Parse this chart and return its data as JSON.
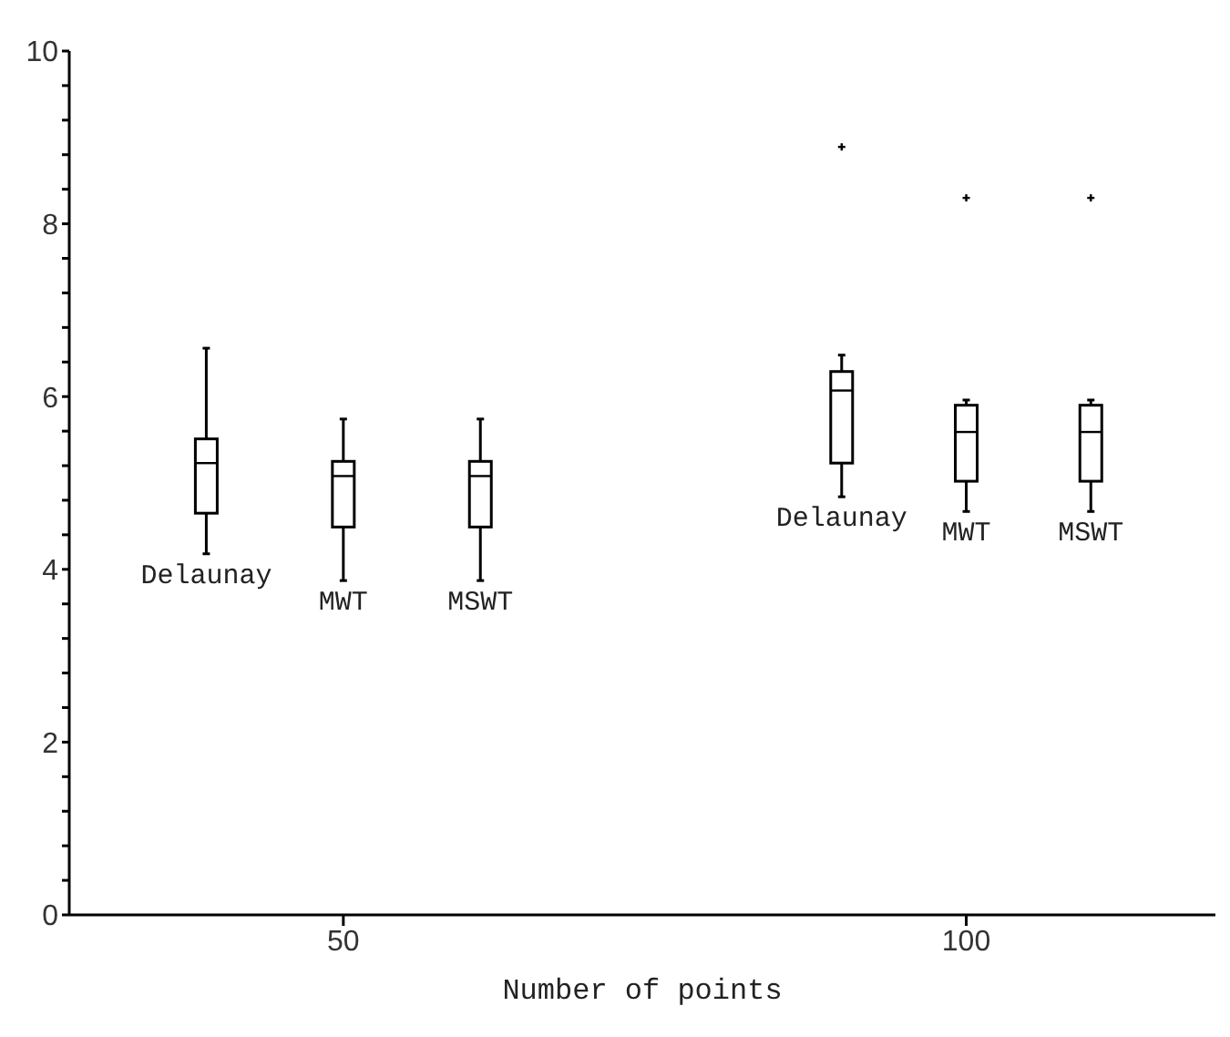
{
  "chart_data": {
    "type": "box",
    "xlabel": "Number of points",
    "xlim": [
      28,
      120
    ],
    "xticks": [
      50,
      100
    ],
    "ylim": [
      0,
      10
    ],
    "yticks": [
      0,
      {
        "value": 0.4,
        "label": null
      },
      {
        "value": 0.8,
        "label": null
      },
      {
        "value": 1.2,
        "label": null
      },
      {
        "value": 1.6,
        "label": null
      },
      2,
      {
        "value": 2.4,
        "label": null
      },
      {
        "value": 2.8,
        "label": null
      },
      {
        "value": 3.2,
        "label": null
      },
      {
        "value": 3.6,
        "label": null
      },
      4,
      {
        "value": 4.4,
        "label": null
      },
      {
        "value": 4.8,
        "label": null
      },
      {
        "value": 5.2,
        "label": null
      },
      {
        "value": 5.6,
        "label": null
      },
      6,
      {
        "value": 6.4,
        "label": null
      },
      {
        "value": 6.8,
        "label": null
      },
      {
        "value": 7.2,
        "label": null
      },
      {
        "value": 7.6,
        "label": null
      },
      8,
      {
        "value": 8.4,
        "label": null
      },
      {
        "value": 8.8,
        "label": null
      },
      {
        "value": 9.2,
        "label": null
      },
      {
        "value": 9.6,
        "label": null
      },
      10
    ],
    "series": [
      {
        "name": "Delaunay",
        "color": "#000000",
        "x": [
          39,
          90
        ],
        "boxes": [
          {
            "low": 4.18,
            "q1": 4.65,
            "median": 5.23,
            "q3": 5.51,
            "high": 6.56
          },
          {
            "low": 4.84,
            "q1": 5.23,
            "median": 6.07,
            "q3": 6.29,
            "high": 6.48,
            "outliers": [
              8.89
            ]
          }
        ]
      },
      {
        "name": "MWT",
        "color": "#000000",
        "x": [
          50,
          100
        ],
        "boxes": [
          {
            "low": 3.87,
            "q1": 4.49,
            "median": 5.08,
            "q3": 5.25,
            "high": 5.74
          },
          {
            "low": 4.67,
            "q1": 5.02,
            "median": 5.59,
            "q3": 5.9,
            "high": 5.96,
            "outliers": [
              8.3
            ]
          }
        ]
      },
      {
        "name": "MSWT",
        "color": "#000000",
        "x": [
          61,
          110
        ],
        "boxes": [
          {
            "low": 3.87,
            "q1": 4.49,
            "median": 5.08,
            "q3": 5.25,
            "high": 5.74
          },
          {
            "low": 4.67,
            "q1": 5.02,
            "median": 5.59,
            "q3": 5.9,
            "high": 5.96,
            "outliers": [
              8.3
            ]
          }
        ]
      }
    ]
  }
}
